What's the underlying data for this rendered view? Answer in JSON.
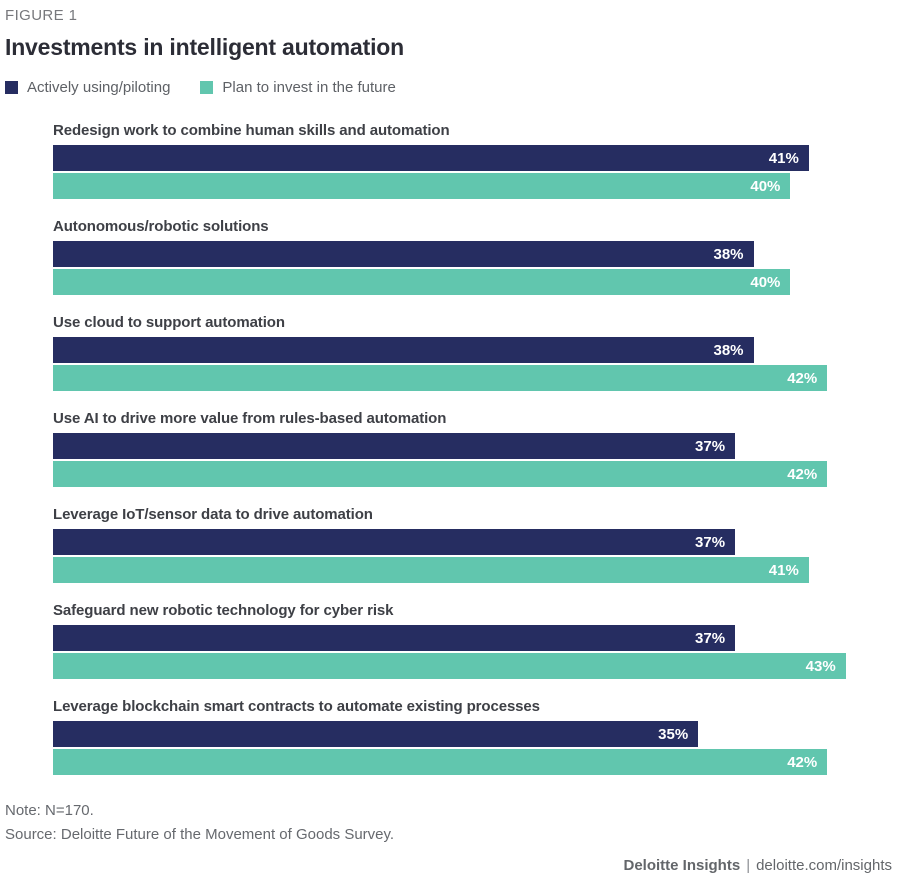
{
  "figure_label": "FIGURE 1",
  "title": "Investments in intelligent automation",
  "legend": [
    {
      "label": "Actively using/piloting",
      "color": "#262d61"
    },
    {
      "label": "Plan to invest in the future",
      "color": "#61c6ae"
    }
  ],
  "chart_data": {
    "type": "bar",
    "orientation": "horizontal",
    "title": "Investments in intelligent automation",
    "categories": [
      "Redesign work to combine human skills and automation",
      "Autonomous/robotic solutions",
      "Use cloud to support automation",
      "Use AI to drive more value from rules-based automation",
      "Leverage IoT/sensor data to drive automation",
      "Safeguard new robotic technology for cyber risk",
      "Leverage blockchain smart contracts to automate existing processes"
    ],
    "series": [
      {
        "name": "Actively using/piloting",
        "color": "#262d61",
        "values": [
          41,
          38,
          38,
          37,
          37,
          37,
          35
        ]
      },
      {
        "name": "Plan to invest in the future",
        "color": "#61c6ae",
        "values": [
          40,
          40,
          42,
          42,
          41,
          43,
          42
        ]
      }
    ],
    "value_suffix": "%",
    "xlim": [
      0,
      46
    ],
    "value_labels": "inside-end",
    "grid": false,
    "legend_position": "top-left"
  },
  "notes": {
    "note": "Note: N=170.",
    "source": "Source: Deloitte Future of the Movement of Goods Survey."
  },
  "footer": {
    "brand": "Deloitte Insights",
    "separator": "|",
    "url": "deloitte.com/insights"
  }
}
